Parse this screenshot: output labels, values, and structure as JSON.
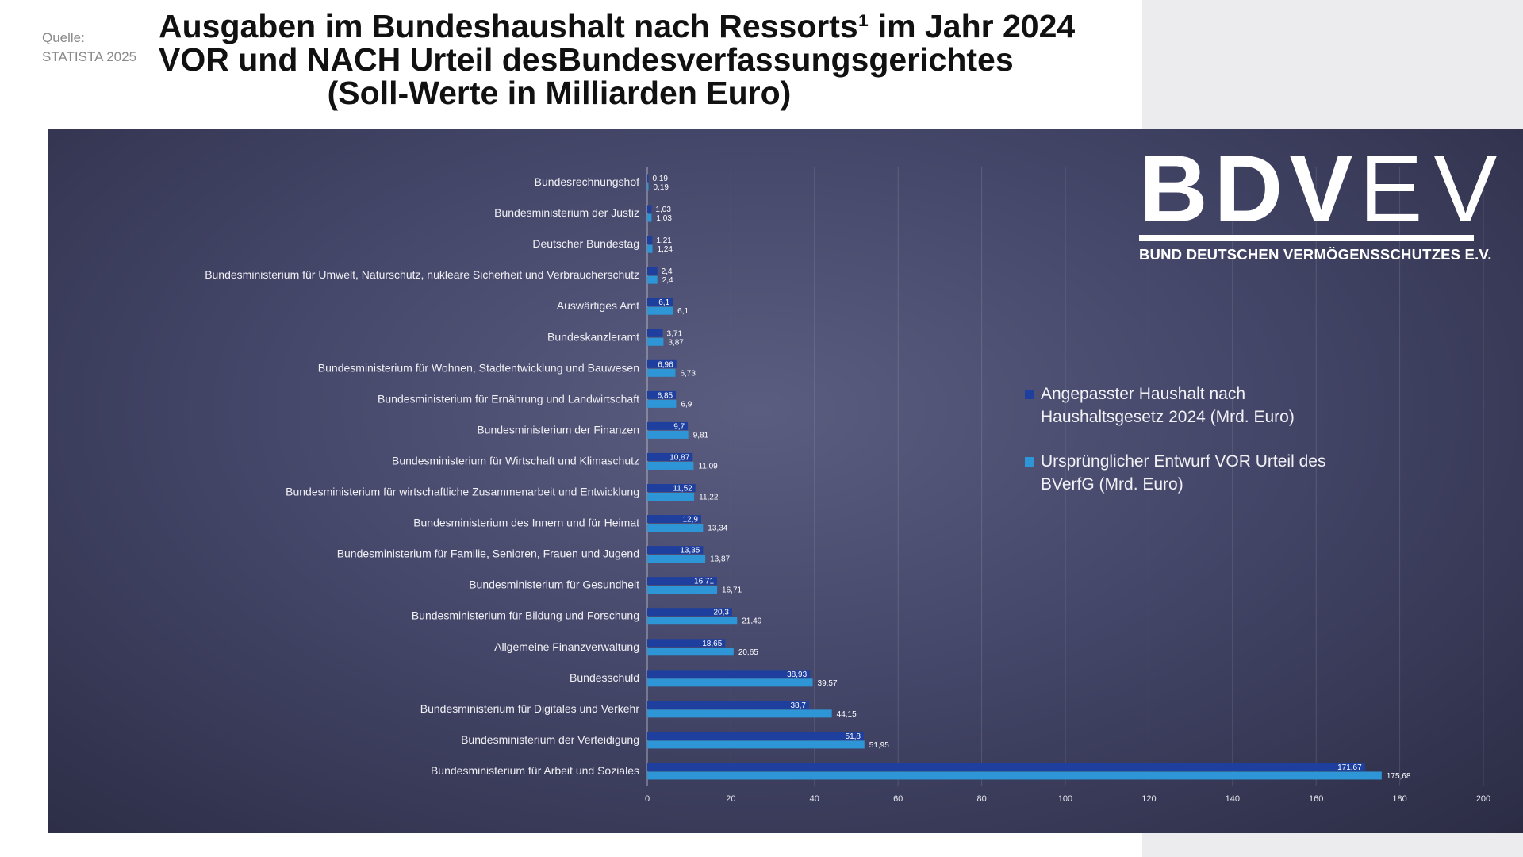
{
  "source": {
    "label": "Quelle:",
    "name": "STATISTA 2025"
  },
  "title_lines": [
    "Ausgaben im Bundeshaushalt nach Ressorts¹ im Jahr 2024",
    "VOR und NACH Urteil desBundesverfassungsgerichtes",
    "(Soll-Werte in Milliarden Euro)"
  ],
  "logo": {
    "mark_bold": "BDV",
    "mark_light": "EV",
    "subtitle": "BUND DEUTSCHEN VERMÖGENSSCHUTZES E.V."
  },
  "colors": {
    "series_adjusted": "#1f3f9e",
    "series_original": "#2e95d6",
    "panel": "#45476a"
  },
  "chart_data": {
    "type": "bar",
    "orientation": "horizontal",
    "categories": [
      "Bundesrechnungshof",
      "Bundesministerium der Justiz",
      "Deutscher Bundestag",
      "Bundesministerium für Umwelt, Naturschutz, nukleare Sicherheit und Verbraucherschutz",
      "Auswärtiges Amt",
      "Bundeskanzleramt",
      "Bundesministerium für Wohnen, Stadtentwicklung und Bauwesen",
      "Bundesministerium für Ernährung und Landwirtschaft",
      "Bundesministerium der Finanzen",
      "Bundesministerium für Wirtschaft und Klimaschutz",
      "Bundesministerium für wirtschaftliche Zusammenarbeit und Entwicklung",
      "Bundesministerium des Innern und für Heimat",
      "Bundesministerium für Familie, Senioren, Frauen und Jugend",
      "Bundesministerium für Gesundheit",
      "Bundesministerium für Bildung und Forschung",
      "Allgemeine Finanzverwaltung",
      "Bundesschuld",
      "Bundesministerium für Digitales und Verkehr",
      "Bundesministerium der Verteidigung",
      "Bundesministerium für Arbeit und Soziales"
    ],
    "series": [
      {
        "name": "Angepasster Haushalt nach Haushaltsgesetz 2024 (Mrd. Euro)",
        "values": [
          0.19,
          1.03,
          1.21,
          2.4,
          6.1,
          3.71,
          6.96,
          6.85,
          9.7,
          10.87,
          11.52,
          12.9,
          13.35,
          16.71,
          20.3,
          18.65,
          38.93,
          38.7,
          51.8,
          171.67
        ],
        "labels": [
          "0,19",
          "1,03",
          "1,21",
          "2,4",
          "6,1",
          "3,71",
          "6,96",
          "6,85",
          "9,7",
          "10,87",
          "11,52",
          "12,9",
          "13,35",
          "16,71",
          "20,3",
          "18,65",
          "38,93",
          "38,7",
          "51,8",
          "171,67"
        ]
      },
      {
        "name": "Ursprünglicher Entwurf VOR Urteil des BVerfG (Mrd. Euro)",
        "values": [
          0.19,
          1.03,
          1.24,
          2.4,
          6.1,
          3.87,
          6.73,
          6.9,
          9.81,
          11.09,
          11.22,
          13.34,
          13.87,
          16.71,
          21.49,
          20.65,
          39.57,
          44.15,
          51.95,
          175.68
        ],
        "labels": [
          "0,19",
          "1,03",
          "1,24",
          "2,4",
          "6,1",
          "3,87",
          "6,73",
          "6,9",
          "9,81",
          "11,09",
          "11,22",
          "13,34",
          "13,87",
          "16,71",
          "21,49",
          "20,65",
          "39,57",
          "44,15",
          "51,95",
          "175,68"
        ]
      }
    ],
    "xlim": [
      0,
      200
    ],
    "xticks": [
      0,
      20,
      40,
      60,
      80,
      100,
      120,
      140,
      160,
      180,
      200
    ],
    "grid": true,
    "legend_position": "right"
  }
}
